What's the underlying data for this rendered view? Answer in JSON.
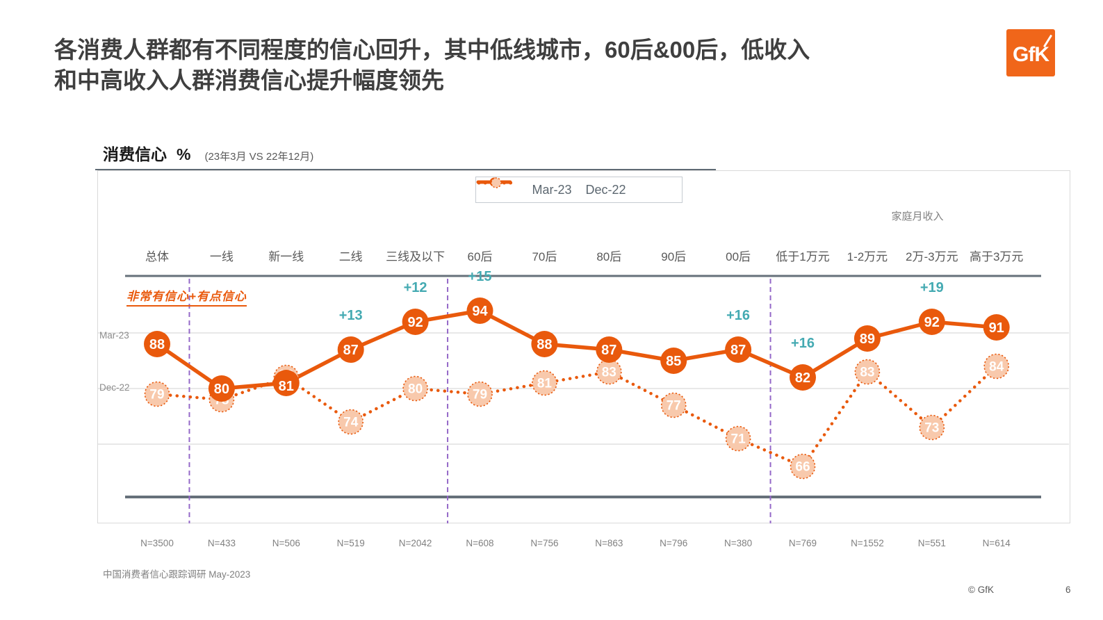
{
  "page": {
    "title_line1": "各消费人群都有不同程度的信心回升，其中低线城市，60后&00后，低收入",
    "title_line2": "和中高收入人群消费信心提升幅度领先",
    "logo_text": "GfK",
    "footer_source": "中国消费者信心跟踪调研 May-2023",
    "footer_copyright": "© GfK",
    "page_number": "6"
  },
  "chart_header": {
    "title": "消费信心",
    "unit": "%",
    "subtitle": "(23年3月 VS 22年12月)"
  },
  "chart_data": {
    "type": "line",
    "title": "消费信心 % (23年3月 VS 22年12月)",
    "categories": [
      "总体",
      "一线",
      "新一线",
      "二线",
      "三线及以下",
      "60后",
      "70后",
      "80后",
      "90后",
      "00后",
      "低于1万元",
      "1-2万元",
      "2万-3万元",
      "高于3万元"
    ],
    "sample_sizes": [
      "N=3500",
      "N=433",
      "N=506",
      "N=519",
      "N=2042",
      "N=608",
      "N=756",
      "N=863",
      "N=796",
      "N=380",
      "N=769",
      "N=1552",
      "N=551",
      "N=614"
    ],
    "series": [
      {
        "name": "Mar-23",
        "style": "solid",
        "values": [
          88,
          80,
          81,
          87,
          92,
          94,
          88,
          87,
          85,
          87,
          82,
          89,
          92,
          91
        ]
      },
      {
        "name": "Dec-22",
        "style": "dotted",
        "values": [
          79,
          78,
          82,
          74,
          80,
          79,
          81,
          83,
          77,
          71,
          66,
          83,
          73,
          84
        ]
      }
    ],
    "row_labels": [
      "Mar-23",
      "Dec-22"
    ],
    "diff_annotations": [
      {
        "index": 3,
        "label": "+13"
      },
      {
        "index": 4,
        "label": "+12"
      },
      {
        "index": 5,
        "label": "+15"
      },
      {
        "index": 9,
        "label": "+16"
      },
      {
        "index": 10,
        "label": "+16"
      },
      {
        "index": 12,
        "label": "+19"
      }
    ],
    "group_separators_after": [
      0,
      4,
      9
    ],
    "income_group_label": "家庭月收入",
    "annotation_note": "非常有信心+有点信心",
    "legend_position": "top-center",
    "grid": "horizontal",
    "ylim": [
      58,
      100
    ],
    "colors": {
      "mar23_orange": "#e9590c",
      "dec22_light_orange": "#f8c9ac",
      "diff_teal": "#44aab2",
      "divider_purple": "#9468c8",
      "axis_dark": "#66707a",
      "gridline": "#d2d2d2",
      "label_gray": "#595959",
      "muted_gray": "#808080",
      "logo_orange": "#f0661a"
    }
  }
}
